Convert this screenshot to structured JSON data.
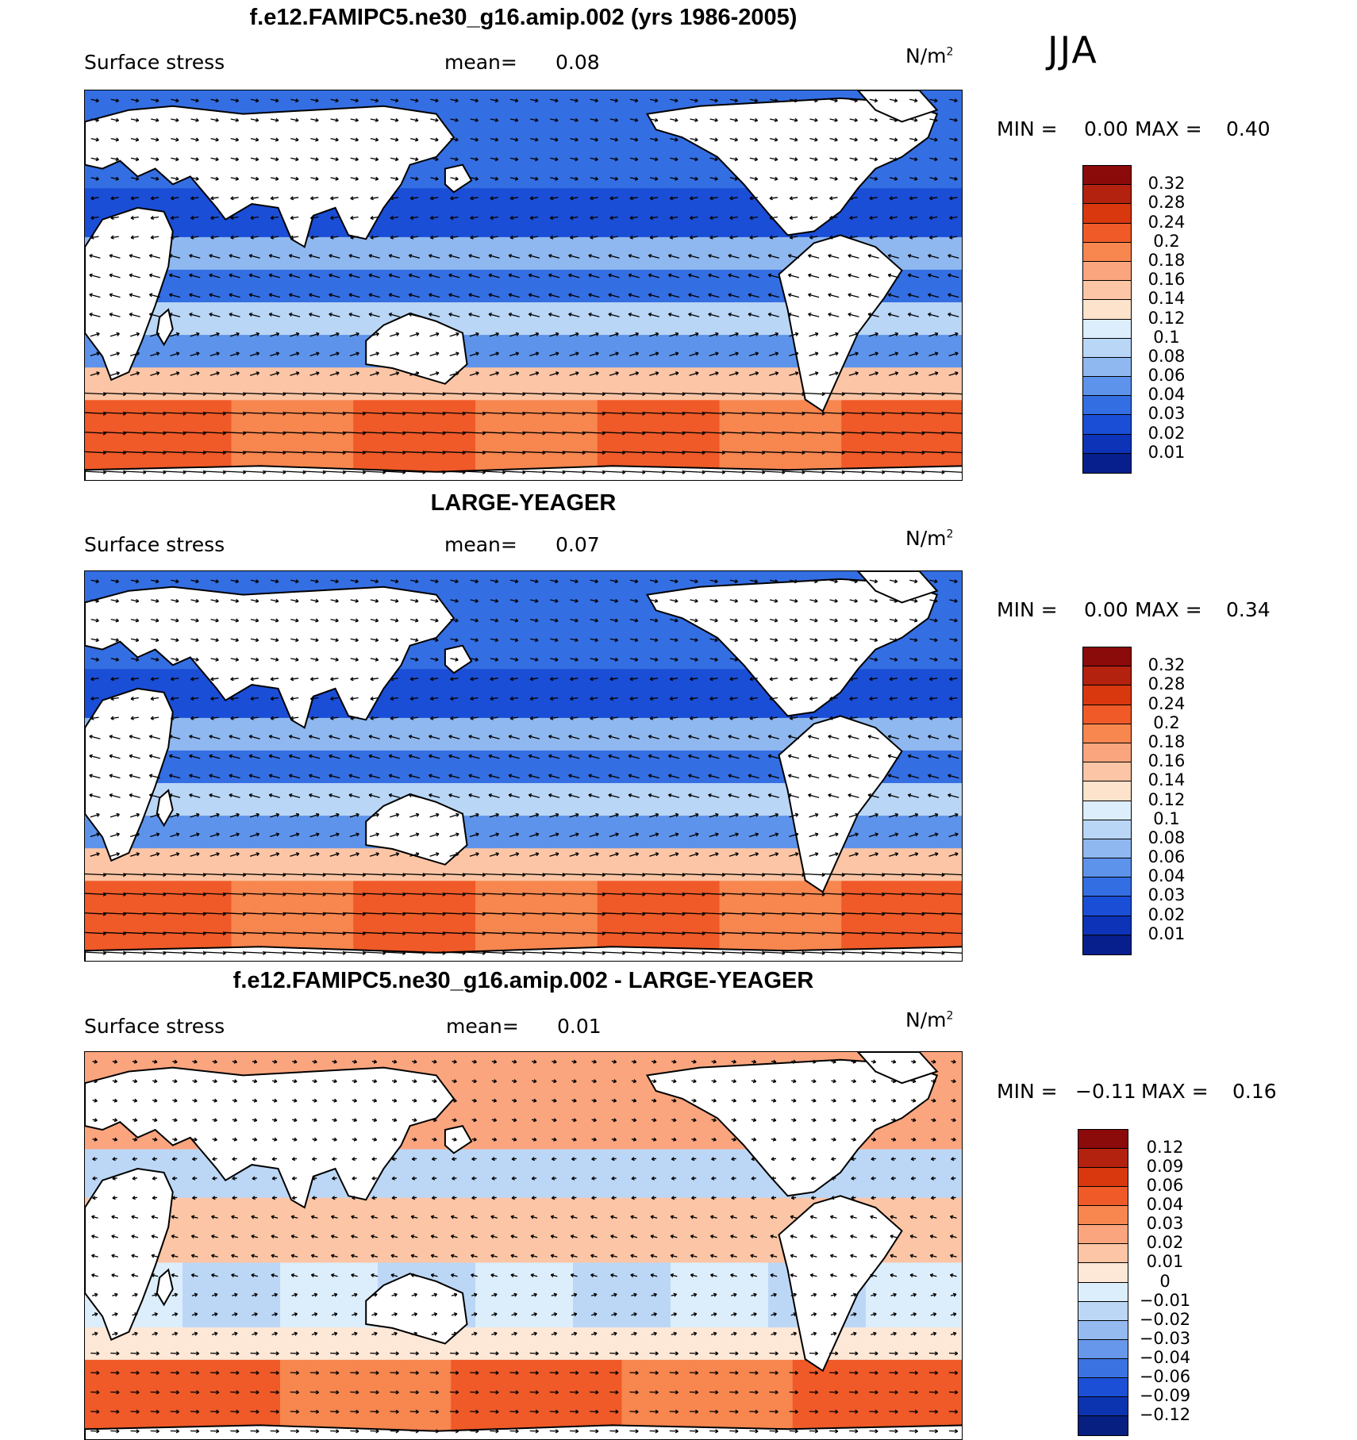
{
  "season": "JJA",
  "panels": [
    {
      "title": "f.e12.FAMIPC5.ne30_g16.amip.002 (yrs 1986-2005)",
      "variable": "Surface stress",
      "mean_label": "mean=",
      "mean_value": "0.08",
      "units": "N/m",
      "units_sup": "2",
      "min_label": "MIN =",
      "min_value": "0.00",
      "max_label": "MAX =",
      "max_value": "0.40",
      "kind": "absolute",
      "levels": [
        "0.32",
        "0.28",
        "0.24",
        "0.2",
        "0.18",
        "0.16",
        "0.14",
        "0.12",
        "0.1",
        "0.08",
        "0.06",
        "0.04",
        "0.03",
        "0.02",
        "0.01"
      ],
      "colors": [
        "#8b0a0a",
        "#b3210f",
        "#d9380f",
        "#ef5a28",
        "#f7864f",
        "#fba57e",
        "#fcc5a5",
        "#fde2cc",
        "#dceefb",
        "#b9d6f6",
        "#8fb8f0",
        "#5d93ea",
        "#346ee3",
        "#1a4ed7",
        "#0d33b8",
        "#061f8c"
      ]
    },
    {
      "title": "LARGE-YEAGER",
      "variable": "Surface stress",
      "mean_label": "mean=",
      "mean_value": "0.07",
      "units": "N/m",
      "units_sup": "2",
      "min_label": "MIN =",
      "min_value": "0.00",
      "max_label": "MAX =",
      "max_value": "0.34",
      "kind": "absolute",
      "levels": [
        "0.32",
        "0.28",
        "0.24",
        "0.2",
        "0.18",
        "0.16",
        "0.14",
        "0.12",
        "0.1",
        "0.08",
        "0.06",
        "0.04",
        "0.03",
        "0.02",
        "0.01"
      ],
      "colors": [
        "#8b0a0a",
        "#b3210f",
        "#d9380f",
        "#ef5a28",
        "#f7864f",
        "#fba57e",
        "#fcc5a5",
        "#fde2cc",
        "#dceefb",
        "#b9d6f6",
        "#8fb8f0",
        "#5d93ea",
        "#346ee3",
        "#1a4ed7",
        "#0d33b8",
        "#061f8c"
      ]
    },
    {
      "title": "f.e12.FAMIPC5.ne30_g16.amip.002 - LARGE-YEAGER",
      "variable": "Surface stress",
      "mean_label": "mean=",
      "mean_value": "0.01",
      "units": "N/m",
      "units_sup": "2",
      "min_label": "MIN =",
      "min_value": "−0.11",
      "max_label": "MAX =",
      "max_value": "0.16",
      "kind": "difference",
      "levels": [
        "0.12",
        "0.09",
        "0.06",
        "0.04",
        "0.03",
        "0.02",
        "0.01",
        "0",
        "−0.01",
        "−0.02",
        "−0.03",
        "−0.04",
        "−0.06",
        "−0.09",
        "−0.12"
      ],
      "colors": [
        "#8b0a0a",
        "#b3210f",
        "#d9380f",
        "#ef5a28",
        "#f7864f",
        "#fba57e",
        "#fcc5a5",
        "#fde7d6",
        "#dceefb",
        "#bcd7f6",
        "#94baf0",
        "#6797ea",
        "#3a72e2",
        "#1b4fd5",
        "#0c33b0",
        "#061f80"
      ]
    }
  ]
}
